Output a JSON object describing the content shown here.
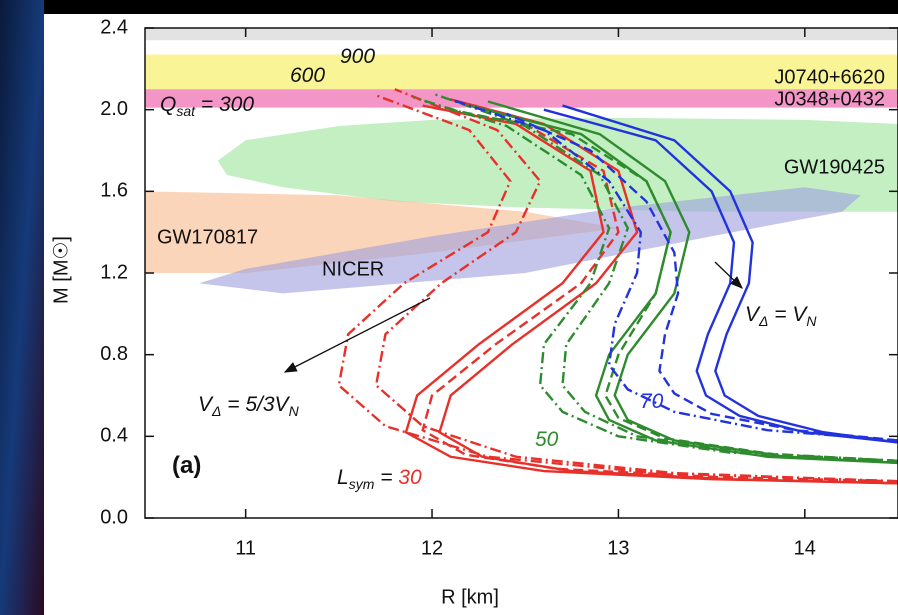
{
  "chart_data": {
    "type": "line",
    "xlabel": "R [km]",
    "ylabel": "M [M☉]",
    "xlim": [
      10.46,
      14.5
    ],
    "xticks": [
      11,
      12,
      13,
      14
    ],
    "ylim": [
      0,
      2.4
    ],
    "yticks": [
      {
        "value": 0,
        "label": "0.0"
      },
      {
        "value": 0.4,
        "label": "0.4"
      },
      {
        "value": 0.8,
        "label": "0.8"
      },
      {
        "value": 1.2,
        "label": "1.2"
      },
      {
        "value": 1.6,
        "label": "1.6"
      },
      {
        "value": 2.0,
        "label": "2.0"
      },
      {
        "value": 2.4,
        "label": "2.4"
      }
    ],
    "bands": [
      {
        "range": [
          2.34,
          2.4
        ],
        "color": "#dcdcdc"
      },
      {
        "name": "J0740+6620",
        "range": [
          2.1,
          2.27
        ],
        "color": "#f7f27c"
      },
      {
        "name": "J0348+0432",
        "range": [
          2.01,
          2.1
        ],
        "color": "#f07ab8"
      }
    ],
    "regions": [
      {
        "name": "GW190425",
        "color": "#9be59b",
        "x": [
          10.85,
          11.0,
          11.5,
          12.0,
          13.0,
          14.0,
          14.5,
          14.5,
          13.5,
          12.5,
          11.8,
          11.2,
          10.9
        ],
        "y": [
          1.75,
          1.85,
          1.92,
          1.95,
          1.96,
          1.95,
          1.93,
          1.5,
          1.5,
          1.52,
          1.55,
          1.62,
          1.68
        ]
      },
      {
        "name": "GW170817",
        "color": "#f8b98a",
        "x": [
          10.46,
          11.5,
          12.5,
          13.0,
          12.0,
          11.0,
          10.46
        ],
        "y": [
          1.6,
          1.58,
          1.5,
          1.42,
          1.3,
          1.2,
          1.2
        ]
      },
      {
        "name": "NICER",
        "color": "#9f9fe0",
        "x": [
          10.75,
          11.2,
          12.5,
          13.5,
          14.2,
          14.3,
          14.0,
          13.0,
          12.0,
          11.0
        ],
        "y": [
          1.15,
          1.1,
          1.2,
          1.38,
          1.5,
          1.58,
          1.62,
          1.52,
          1.38,
          1.22
        ]
      }
    ],
    "series": [
      {
        "color": "#e8302a",
        "style": "solid",
        "x": [
          14.5,
          13.5,
          12.6,
          12.1,
          11.86,
          11.92,
          12.25,
          12.7,
          12.92,
          12.85,
          12.45,
          11.95
        ],
        "values": [
          0.17,
          0.19,
          0.23,
          0.3,
          0.42,
          0.6,
          0.85,
          1.15,
          1.4,
          1.7,
          1.93,
          2.02
        ]
      },
      {
        "color": "#e8302a",
        "style": "solid",
        "x": [
          14.5,
          13.6,
          12.75,
          12.27,
          12.04,
          12.1,
          12.43,
          12.88,
          13.1,
          13.0,
          12.6,
          12.1
        ],
        "values": [
          0.17,
          0.19,
          0.23,
          0.3,
          0.42,
          0.6,
          0.85,
          1.15,
          1.4,
          1.7,
          1.93,
          2.05
        ]
      },
      {
        "color": "#e8302a",
        "style": "dash",
        "x": [
          14.5,
          13.55,
          12.68,
          12.18,
          11.95,
          12.0,
          12.34,
          12.8,
          13.0,
          12.92,
          12.5,
          12.0
        ],
        "values": [
          0.18,
          0.2,
          0.24,
          0.31,
          0.43,
          0.6,
          0.85,
          1.15,
          1.4,
          1.7,
          1.93,
          2.01
        ]
      },
      {
        "color": "#e8302a",
        "style": "dashdot",
        "x": [
          14.5,
          13.2,
          12.3,
          11.75,
          11.5,
          11.55,
          11.85,
          12.3,
          12.42,
          12.2,
          11.7
        ],
        "values": [
          0.18,
          0.22,
          0.3,
          0.45,
          0.65,
          0.9,
          1.15,
          1.4,
          1.65,
          1.9,
          2.07
        ]
      },
      {
        "color": "#e8302a",
        "style": "dashdot",
        "x": [
          14.5,
          13.3,
          12.45,
          11.95,
          11.7,
          11.75,
          12.05,
          12.45,
          12.58,
          12.35,
          11.8
        ],
        "values": [
          0.18,
          0.22,
          0.3,
          0.45,
          0.65,
          0.9,
          1.15,
          1.4,
          1.65,
          1.9,
          2.1
        ]
      },
      {
        "color": "#2e8b2e",
        "style": "solid",
        "x": [
          14.5,
          13.8,
          13.2,
          12.95,
          12.88,
          12.95,
          13.2,
          13.28,
          13.15,
          12.8,
          12.2
        ],
        "values": [
          0.27,
          0.3,
          0.38,
          0.48,
          0.6,
          0.8,
          1.1,
          1.4,
          1.65,
          1.88,
          2.02
        ]
      },
      {
        "color": "#2e8b2e",
        "style": "solid",
        "x": [
          14.5,
          13.9,
          13.3,
          13.05,
          12.98,
          13.05,
          13.3,
          13.38,
          13.25,
          12.9,
          12.3
        ],
        "values": [
          0.27,
          0.3,
          0.38,
          0.48,
          0.6,
          0.8,
          1.1,
          1.4,
          1.65,
          1.88,
          2.04
        ]
      },
      {
        "color": "#2e8b2e",
        "style": "dash",
        "x": [
          14.5,
          13.85,
          13.25,
          13.0,
          12.93,
          13.0,
          13.2,
          13.28,
          13.15,
          12.75,
          12.1
        ],
        "values": [
          0.28,
          0.31,
          0.39,
          0.49,
          0.6,
          0.8,
          1.1,
          1.4,
          1.65,
          1.88,
          2.0
        ]
      },
      {
        "color": "#2e8b2e",
        "style": "dashdot",
        "x": [
          14.5,
          13.6,
          13.0,
          12.7,
          12.58,
          12.6,
          12.85,
          12.95,
          12.8,
          12.4,
          11.9
        ],
        "values": [
          0.28,
          0.32,
          0.4,
          0.52,
          0.65,
          0.85,
          1.15,
          1.42,
          1.68,
          1.92,
          2.06
        ]
      },
      {
        "color": "#2e8b2e",
        "style": "dashdot",
        "x": [
          14.5,
          13.7,
          13.1,
          12.82,
          12.7,
          12.72,
          12.95,
          13.05,
          12.9,
          12.5,
          12.0
        ],
        "values": [
          0.28,
          0.32,
          0.4,
          0.52,
          0.65,
          0.85,
          1.15,
          1.42,
          1.68,
          1.92,
          2.08
        ]
      },
      {
        "color": "#2233dd",
        "style": "solid",
        "x": [
          14.5,
          14.0,
          13.65,
          13.47,
          13.42,
          13.48,
          13.6,
          13.62,
          13.5,
          13.2,
          12.6
        ],
        "values": [
          0.37,
          0.42,
          0.5,
          0.6,
          0.72,
          0.9,
          1.15,
          1.35,
          1.6,
          1.85,
          2.0
        ]
      },
      {
        "color": "#2233dd",
        "style": "solid",
        "x": [
          14.5,
          14.1,
          13.75,
          13.57,
          13.52,
          13.58,
          13.7,
          13.72,
          13.6,
          13.3,
          12.7
        ],
        "values": [
          0.37,
          0.42,
          0.5,
          0.6,
          0.72,
          0.9,
          1.15,
          1.35,
          1.6,
          1.85,
          2.02
        ]
      },
      {
        "color": "#2233dd",
        "style": "dash",
        "x": [
          14.5,
          13.95,
          13.5,
          13.3,
          13.22,
          13.25,
          13.32,
          13.3,
          13.15,
          12.85,
          12.4
        ],
        "values": [
          0.38,
          0.43,
          0.51,
          0.61,
          0.72,
          0.9,
          1.1,
          1.3,
          1.55,
          1.8,
          1.98
        ]
      },
      {
        "color": "#2233dd",
        "style": "dashdot",
        "x": [
          14.5,
          13.8,
          13.3,
          13.05,
          12.95,
          12.98,
          13.1,
          13.12,
          12.95,
          12.6,
          12.1
        ],
        "values": [
          0.38,
          0.43,
          0.52,
          0.63,
          0.75,
          0.95,
          1.2,
          1.4,
          1.65,
          1.9,
          2.05
        ]
      }
    ],
    "annotations": [
      [
        {
          "t": "Q"
        },
        {
          "t": "sat",
          "sub": true
        },
        {
          "t": " = 300"
        }
      ],
      [
        {
          "t": "600"
        }
      ],
      [
        {
          "t": "900"
        }
      ],
      [
        {
          "t": "V"
        },
        {
          "t": "Δ",
          "sub": true
        },
        {
          "t": " = V"
        },
        {
          "t": "N",
          "sub": true
        }
      ],
      [
        {
          "t": "V"
        },
        {
          "t": "Δ",
          "sub": true
        },
        {
          "t": " = 5/3V"
        },
        {
          "t": "N",
          "sub": true
        }
      ],
      [
        {
          "t": "70",
          "color": "#2233dd"
        }
      ],
      [
        {
          "t": "50",
          "color": "#2e8b2e"
        }
      ],
      [
        {
          "t": "L"
        },
        {
          "t": "sym",
          "sub": true
        },
        {
          "t": " = "
        },
        {
          "t": "30",
          "color": "#e8302a"
        }
      ],
      [
        {
          "t": "(a)",
          "bold": true
        }
      ]
    ]
  }
}
